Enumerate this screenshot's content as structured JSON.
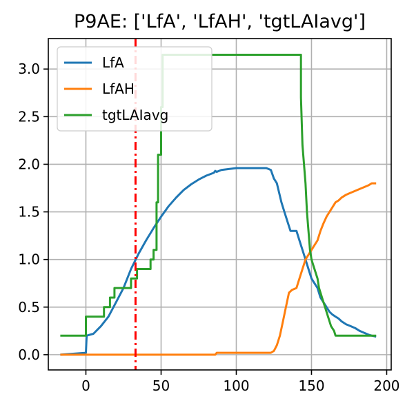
{
  "chart_data": {
    "type": "line",
    "title": "P9AE: ['LfA', 'LfAH', 'tgtLAIavg']",
    "xlabel": "",
    "ylabel": "",
    "xlim": [
      -25,
      203
    ],
    "ylim": [
      -0.16,
      3.32
    ],
    "xticks": [
      0,
      50,
      100,
      150,
      200
    ],
    "xtick_labels": [
      "0",
      "50",
      "100",
      "150",
      "200"
    ],
    "yticks": [
      0.0,
      0.5,
      1.0,
      1.5,
      2.0,
      2.5,
      3.0
    ],
    "ytick_labels": [
      "0.0",
      "0.5",
      "1.0",
      "1.5",
      "2.0",
      "2.5",
      "3.0"
    ],
    "grid": true,
    "legend_position": "top-left",
    "vline": {
      "x": 33,
      "color": "#ff0000",
      "style": "dashed"
    },
    "series": [
      {
        "name": "LfA",
        "color": "#1f77b4",
        "x": [
          -17,
          0,
          0.5,
          5,
          10,
          15,
          20,
          25,
          30,
          35,
          40,
          45,
          50,
          55,
          60,
          65,
          70,
          75,
          80,
          85,
          86,
          87,
          90,
          95,
          100,
          110,
          120,
          123,
          125,
          127,
          130,
          132,
          134,
          136,
          138,
          140,
          142,
          144,
          146,
          148,
          150,
          152,
          154,
          156,
          158,
          160,
          162,
          164,
          166,
          168,
          170,
          173,
          176,
          179,
          182,
          185,
          188,
          190,
          193
        ],
        "y": [
          0.0,
          0.02,
          0.2,
          0.22,
          0.3,
          0.4,
          0.55,
          0.7,
          0.9,
          1.06,
          1.2,
          1.33,
          1.45,
          1.56,
          1.65,
          1.73,
          1.79,
          1.84,
          1.88,
          1.91,
          1.93,
          1.92,
          1.94,
          1.95,
          1.96,
          1.96,
          1.96,
          1.94,
          1.85,
          1.8,
          1.6,
          1.5,
          1.4,
          1.3,
          1.3,
          1.3,
          1.2,
          1.1,
          1.0,
          0.9,
          0.8,
          0.75,
          0.7,
          0.6,
          0.55,
          0.5,
          0.45,
          0.42,
          0.4,
          0.38,
          0.35,
          0.32,
          0.3,
          0.28,
          0.25,
          0.23,
          0.21,
          0.2,
          0.19
        ]
      },
      {
        "name": "LfAH",
        "color": "#ff7f0e",
        "x": [
          -17,
          86,
          87,
          123,
          125,
          127,
          129,
          131,
          133,
          135,
          137,
          140,
          142,
          144,
          146,
          148,
          150,
          152,
          154,
          156,
          158,
          160,
          162,
          164,
          166,
          168,
          170,
          173,
          176,
          179,
          182,
          185,
          188,
          190,
          193
        ],
        "y": [
          0.0,
          0.0,
          0.02,
          0.02,
          0.04,
          0.1,
          0.2,
          0.35,
          0.5,
          0.65,
          0.68,
          0.7,
          0.8,
          0.9,
          1.0,
          1.05,
          1.1,
          1.15,
          1.2,
          1.3,
          1.38,
          1.45,
          1.5,
          1.55,
          1.6,
          1.62,
          1.65,
          1.68,
          1.7,
          1.72,
          1.74,
          1.76,
          1.78,
          1.8,
          1.8
        ]
      },
      {
        "name": "tgtLAIavg",
        "color": "#2ca02c",
        "x": [
          -17,
          0,
          0,
          12,
          12,
          16,
          16,
          19,
          19,
          30,
          30,
          34,
          34,
          43,
          43,
          45,
          45,
          47,
          47,
          48,
          48,
          50,
          50,
          51,
          51,
          143,
          143,
          144,
          145,
          146,
          147,
          148,
          149,
          150,
          151,
          152,
          153,
          154,
          155,
          157,
          159,
          161,
          163,
          165,
          166,
          193
        ],
        "y": [
          0.2,
          0.2,
          0.4,
          0.4,
          0.5,
          0.5,
          0.6,
          0.6,
          0.7,
          0.7,
          0.8,
          0.8,
          0.9,
          0.9,
          1.0,
          1.0,
          1.1,
          1.1,
          1.6,
          1.6,
          2.1,
          2.1,
          2.6,
          2.6,
          3.15,
          3.15,
          2.7,
          2.2,
          2.0,
          1.8,
          1.5,
          1.3,
          1.1,
          1.0,
          0.95,
          0.9,
          0.85,
          0.8,
          0.7,
          0.6,
          0.5,
          0.4,
          0.3,
          0.25,
          0.2,
          0.2
        ]
      }
    ]
  }
}
